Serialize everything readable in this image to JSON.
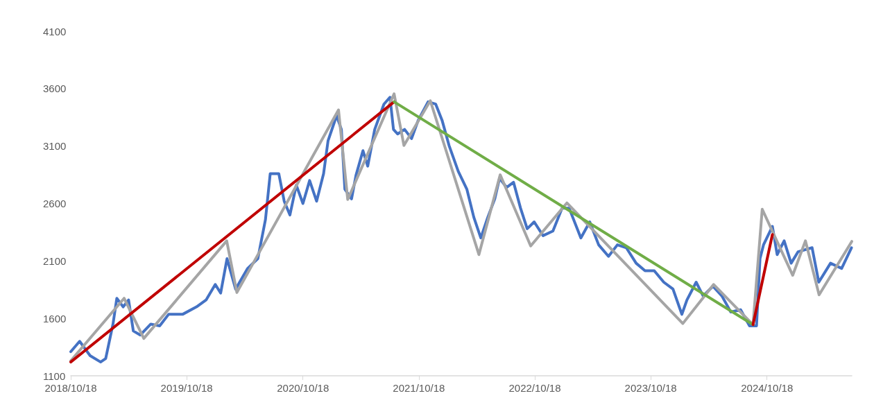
{
  "chart_data": {
    "type": "line",
    "xlim": [
      "2018-10-18",
      "2025-07-12"
    ],
    "xticks": [
      {
        "value": "2018-10-18",
        "label": "2018/10/18"
      },
      {
        "value": "2019-10-18",
        "label": "2019/10/18"
      },
      {
        "value": "2020-10-18",
        "label": "2020/10/18"
      },
      {
        "value": "2021-10-18",
        "label": "2021/10/18"
      },
      {
        "value": "2022-10-18",
        "label": "2022/10/18"
      },
      {
        "value": "2023-10-18",
        "label": "2023/10/18"
      },
      {
        "value": "2024-10-18",
        "label": "2024/10/18"
      }
    ],
    "ylim": [
      1100,
      4100
    ],
    "yticks": [
      1100,
      1600,
      2100,
      2600,
      3100,
      3600,
      4100
    ],
    "grid": false,
    "marker": "none",
    "line_style": "solid",
    "series": [
      {
        "color": "#4472c4",
        "x": [
          "2018-10-18",
          "2018-11-15",
          "2018-12-18",
          "2019-01-20",
          "2019-02-05",
          "2019-02-28",
          "2019-03-12",
          "2019-04-01",
          "2019-04-18",
          "2019-05-03",
          "2019-05-25",
          "2019-06-27",
          "2019-07-25",
          "2019-08-22",
          "2019-10-05",
          "2019-11-18",
          "2019-12-18",
          "2020-01-16",
          "2020-02-02",
          "2020-02-22",
          "2020-03-20",
          "2020-04-27",
          "2020-05-29",
          "2020-06-22",
          "2020-07-07",
          "2020-08-03",
          "2020-08-20",
          "2020-09-07",
          "2020-09-27",
          "2020-10-18",
          "2020-11-08",
          "2020-11-30",
          "2020-12-22",
          "2021-01-05",
          "2021-02-01",
          "2021-02-16",
          "2021-02-27",
          "2021-03-20",
          "2021-04-03",
          "2021-04-25",
          "2021-05-10",
          "2021-06-01",
          "2021-06-30",
          "2021-07-19",
          "2021-07-30",
          "2021-08-12",
          "2021-09-03",
          "2021-09-25",
          "2021-10-16",
          "2021-11-16",
          "2021-12-10",
          "2021-12-30",
          "2022-01-21",
          "2022-02-19",
          "2022-03-18",
          "2022-04-09",
          "2022-05-01",
          "2022-05-23",
          "2022-06-14",
          "2022-06-29",
          "2022-07-21",
          "2022-08-12",
          "2022-09-03",
          "2022-09-24",
          "2022-10-16",
          "2022-11-13",
          "2022-12-14",
          "2023-01-12",
          "2023-02-03",
          "2023-03-12",
          "2023-04-09",
          "2023-05-07",
          "2023-06-07",
          "2023-07-05",
          "2023-08-02",
          "2023-09-02",
          "2023-09-30",
          "2023-10-29",
          "2023-11-28",
          "2023-12-27",
          "2024-01-24",
          "2024-02-09",
          "2024-03-09",
          "2024-03-31",
          "2024-05-01",
          "2024-05-29",
          "2024-06-26",
          "2024-07-27",
          "2024-08-24",
          "2024-09-15",
          "2024-09-26",
          "2024-10-07",
          "2024-11-04",
          "2024-11-19",
          "2024-12-11",
          "2025-01-02",
          "2025-01-24",
          "2025-03-09",
          "2025-03-30",
          "2025-05-06",
          "2025-06-10",
          "2025-07-11"
        ],
        "values": [
          1310,
          1400,
          1275,
          1220,
          1250,
          1550,
          1775,
          1700,
          1760,
          1490,
          1455,
          1550,
          1535,
          1635,
          1635,
          1700,
          1760,
          1895,
          1820,
          2120,
          1855,
          2035,
          2120,
          2460,
          2860,
          2860,
          2620,
          2500,
          2760,
          2600,
          2800,
          2620,
          2860,
          3145,
          3365,
          3245,
          2725,
          2640,
          2845,
          3060,
          2925,
          3245,
          3465,
          3525,
          3245,
          3205,
          3245,
          3165,
          3325,
          3485,
          3465,
          3325,
          3105,
          2880,
          2725,
          2480,
          2300,
          2480,
          2640,
          2820,
          2740,
          2785,
          2560,
          2380,
          2440,
          2320,
          2360,
          2560,
          2560,
          2300,
          2440,
          2240,
          2140,
          2240,
          2215,
          2080,
          2015,
          2015,
          1915,
          1855,
          1635,
          1760,
          1915,
          1795,
          1880,
          1795,
          1655,
          1675,
          1535,
          1535,
          2120,
          2240,
          2400,
          2155,
          2275,
          2080,
          2180,
          2215,
          1915,
          2080,
          2035,
          2215
        ]
      },
      {
        "color": "#a5a5a5",
        "x": [
          "2018-10-18",
          "2019-04-04",
          "2019-06-05",
          "2020-02-21",
          "2020-03-24",
          "2021-02-07",
          "2021-03-08",
          "2021-08-01",
          "2021-09-01",
          "2021-11-23",
          "2022-04-25",
          "2022-07-01",
          "2022-10-05",
          "2023-01-27",
          "2024-01-27",
          "2024-05-03",
          "2024-09-04",
          "2024-10-03",
          "2025-01-07",
          "2025-02-16",
          "2025-03-31",
          "2025-07-12"
        ],
        "values": [
          1230,
          1775,
          1425,
          2275,
          1825,
          3415,
          2635,
          3555,
          3105,
          3495,
          2155,
          2850,
          2230,
          2605,
          1555,
          1895,
          1545,
          2550,
          1975,
          2275,
          1805,
          2270
        ]
      },
      {
        "color": "#c00000",
        "x": [
          "2018-10-18",
          "2021-08-01"
        ],
        "values": [
          1220,
          3485
        ]
      },
      {
        "color": "#70ad47",
        "x": [
          "2021-08-01",
          "2024-09-04"
        ],
        "values": [
          3485,
          1545
        ]
      },
      {
        "color": "#c00000",
        "x": [
          "2024-09-04",
          "2024-11-04"
        ],
        "values": [
          1545,
          2330
        ]
      }
    ]
  }
}
